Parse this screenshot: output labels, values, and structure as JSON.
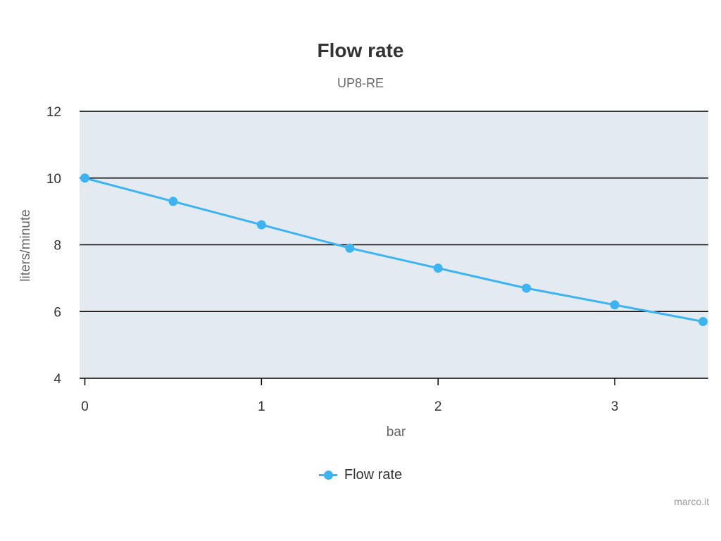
{
  "chart_data": {
    "type": "line",
    "title": "Flow rate",
    "subtitle": "UP8-RE",
    "xlabel": "bar",
    "ylabel": "liters/minute",
    "x": [
      0,
      0.5,
      1,
      1.5,
      2,
      2.5,
      3,
      3.5
    ],
    "series": [
      {
        "name": "Flow rate",
        "values": [
          10.0,
          9.3,
          8.6,
          7.9,
          7.3,
          6.7,
          6.2,
          5.7
        ]
      }
    ],
    "xlim": [
      -0.03,
      3.53
    ],
    "ylim": [
      4,
      12
    ],
    "xticks": [
      0,
      1,
      2,
      3
    ],
    "yticks": [
      4,
      6,
      8,
      10,
      12
    ],
    "grid": true,
    "legend": "bottom-center",
    "colors": {
      "series": "#3db4f2",
      "plot_background": "#e3ebf1",
      "grid": "#000000",
      "axis_text": "#333333"
    }
  },
  "credits": "marco.it"
}
